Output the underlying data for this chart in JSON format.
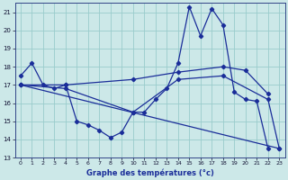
{
  "xlabel": "Graphe des températures (°c)",
  "bg_color": "#cce8e8",
  "grid_color": "#99cccc",
  "line_color": "#1a2d99",
  "xlim": [
    -0.5,
    23.5
  ],
  "ylim": [
    13,
    21.5
  ],
  "yticks": [
    13,
    14,
    15,
    16,
    17,
    18,
    19,
    20,
    21
  ],
  "xticks": [
    0,
    1,
    2,
    3,
    4,
    5,
    6,
    7,
    8,
    9,
    10,
    11,
    12,
    13,
    14,
    15,
    16,
    17,
    18,
    19,
    20,
    21,
    22,
    23
  ],
  "series": [
    {
      "x": [
        0,
        1,
        2,
        3,
        4,
        5,
        6,
        7,
        8,
        9,
        10,
        11,
        12,
        13,
        14,
        15,
        16,
        17,
        18,
        19,
        20,
        21,
        22
      ],
      "y": [
        17.5,
        18.2,
        17.0,
        16.8,
        17.0,
        15.0,
        14.8,
        14.5,
        14.1,
        14.4,
        15.5,
        15.5,
        16.2,
        16.8,
        18.2,
        21.3,
        19.7,
        21.2,
        20.3,
        16.6,
        16.2,
        16.1,
        13.5
      ]
    },
    {
      "x": [
        0,
        4,
        10,
        14,
        18,
        20,
        22
      ],
      "y": [
        17.0,
        17.0,
        17.3,
        17.7,
        18.0,
        17.8,
        16.5
      ]
    },
    {
      "x": [
        0,
        4,
        10,
        14,
        18,
        22,
        23
      ],
      "y": [
        17.0,
        16.8,
        15.5,
        17.3,
        17.5,
        16.2,
        13.5
      ]
    },
    {
      "x": [
        0,
        23
      ],
      "y": [
        17.0,
        13.5
      ]
    }
  ]
}
